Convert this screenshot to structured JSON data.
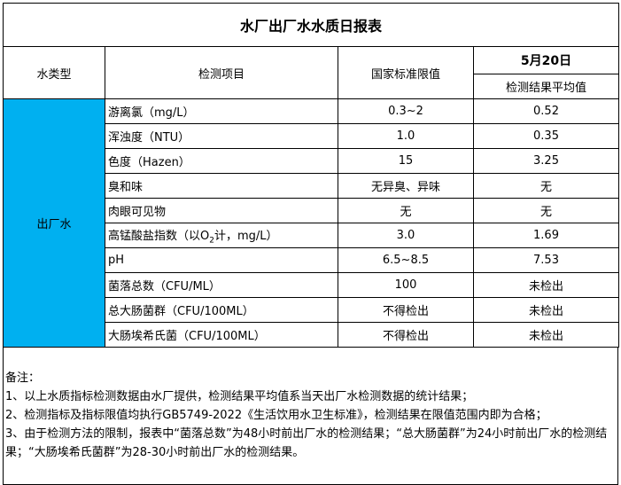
{
  "title": "水厂出厂水水质日报表",
  "header": {
    "water_type": "水类型",
    "item": "检测项目",
    "standard": "国家标准限值",
    "date": "5月20日",
    "result": "检测结果平均值"
  },
  "water_type_value": "出厂水",
  "colors": {
    "water_type_cell": "#00b0f0"
  },
  "rows": [
    {
      "item": "游离氯（mg/L）",
      "standard": "0.3~2",
      "result": "0.52"
    },
    {
      "item": "浑浊度（NTU）",
      "standard": "1.0",
      "result": "0.35"
    },
    {
      "item": "色度（Hazen）",
      "standard": "15",
      "result": "3.25"
    },
    {
      "item": "臭和味",
      "standard": "无异臭、异味",
      "result": "无"
    },
    {
      "item": "肉眼可见物",
      "standard": "无",
      "result": "无"
    },
    {
      "item_pre": "高锰酸盐指数（以O",
      "item_sub": "2",
      "item_post": "计，mg/L）",
      "standard": "3.0",
      "result": "1.69"
    },
    {
      "item": "pH",
      "standard": "6.5~8.5",
      "result": "7.53"
    },
    {
      "item": "菌落总数（CFU/ML）",
      "standard": "100",
      "result": "未检出"
    },
    {
      "item": "总大肠菌群（CFU/100ML）",
      "standard": "不得检出",
      "result": "未检出"
    },
    {
      "item": "大肠埃希氏菌（CFU/100ML）",
      "standard": "不得检出",
      "result": "未检出"
    }
  ],
  "notes": {
    "heading": "备注：",
    "lines": [
      "1、以上水质指标检测数据由水厂提供，检测结果平均值系当天出厂水检测数据的统计结果；",
      "2、检测指标及指标限值均执行GB5749-2022《生活饮用水卫生标准》，检测结果在限值范围内即为合格；",
      "3、由于检测方法的限制，报表中“菌落总数”为48小时前出厂水的检测结果；“总大肠菌群”为24小时前出厂水的检测结果；“大肠埃希氏菌群”为28-30小时前出厂水的检测结果。"
    ]
  }
}
